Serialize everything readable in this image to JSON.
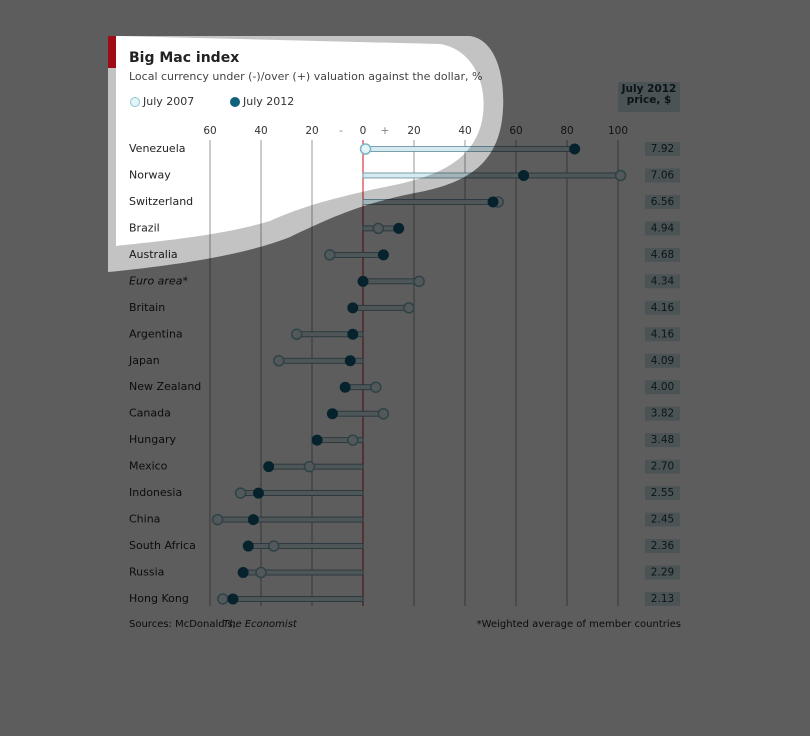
{
  "chart_data": {
    "type": "dumbbell",
    "title": "Big Mac index",
    "subtitle": "Local currency under (-)/over (+) valuation against the dollar, %",
    "minus_sign": "-",
    "plus_sign": "+",
    "categories": [
      "Venezuela",
      "Norway",
      "Switzerland",
      "Brazil",
      "Australia",
      "Euro area*",
      "Britain",
      "Argentina",
      "Japan",
      "New Zealand",
      "Canada",
      "Hungary",
      "Mexico",
      "Indonesia",
      "China",
      "South Africa",
      "Russia",
      "Hong Kong"
    ],
    "series": [
      {
        "name": "July 2007",
        "color": "#e4f5f8",
        "values": [
          1,
          101,
          53,
          6,
          -13,
          22,
          18,
          -26,
          -33,
          5,
          8,
          -4,
          -21,
          -48,
          -57,
          -35,
          -40,
          -55
        ]
      },
      {
        "name": "July 2012",
        "color": "#11607c",
        "values": [
          83,
          63,
          51,
          14,
          8,
          0,
          -4,
          -4,
          -5,
          -7,
          -12,
          -18,
          -37,
          -41,
          -43,
          -45,
          -47,
          -51
        ]
      }
    ],
    "xlim": [
      -62,
      105
    ],
    "xticks": [
      {
        "value": -60,
        "label": "60"
      },
      {
        "value": -40,
        "label": "40"
      },
      {
        "value": -20,
        "label": "20"
      },
      0,
      20,
      40,
      60,
      80,
      100
    ],
    "price_table": {
      "header": "July 2012 price, $",
      "values": [
        7.92,
        7.06,
        6.56,
        4.94,
        4.68,
        4.34,
        4.16,
        4.16,
        4.09,
        4,
        3.82,
        3.48,
        2.7,
        2.55,
        2.45,
        2.36,
        2.29,
        2.13
      ],
      "value_labels": [
        "7.92",
        "7.06",
        "6.56",
        "4.94",
        "4.68",
        "4.34",
        "4.16",
        "4.16",
        "4.09",
        "4.00",
        "3.82",
        "3.48",
        "2.70",
        "2.55",
        "2.45",
        "2.36",
        "2.29",
        "2.13"
      ]
    },
    "source": "Sources: McDonald's;",
    "source_name": "The Economist",
    "footnote": "*Weighted average of member countries"
  }
}
